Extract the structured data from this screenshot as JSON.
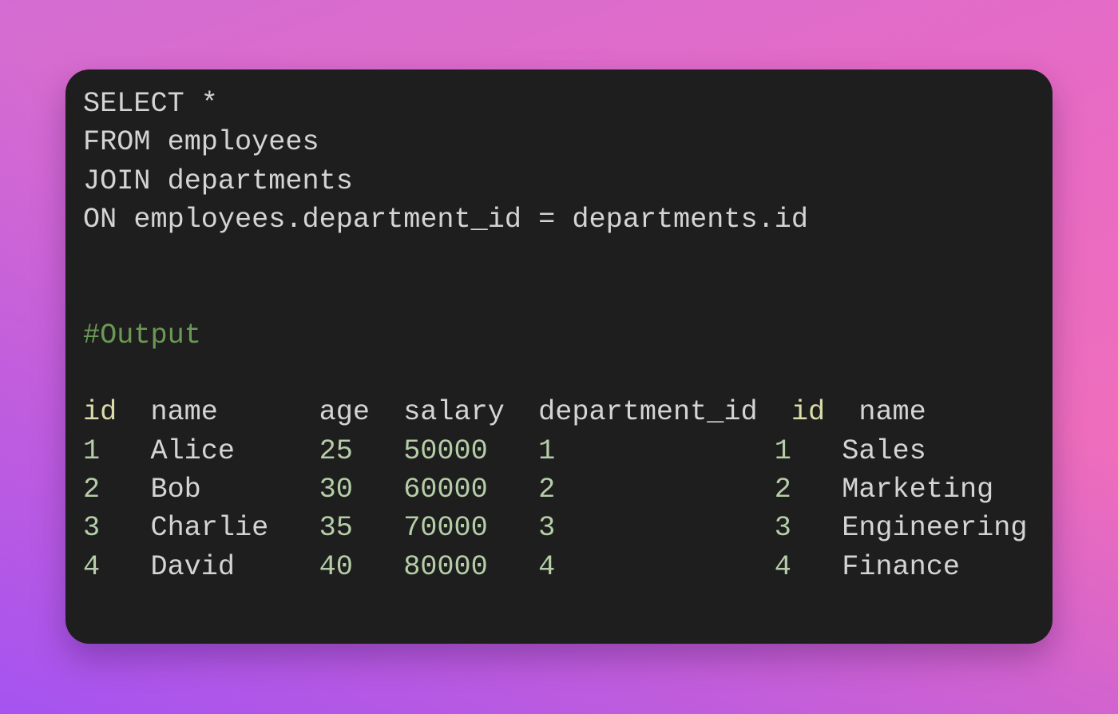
{
  "query": [
    "SELECT *",
    "FROM employees",
    "JOIN departments",
    "ON employees.department_id = departments.id"
  ],
  "output_comment": "#Output",
  "output": {
    "headers": [
      "id",
      "name",
      "age",
      "salary",
      "department_id",
      "id",
      "name"
    ],
    "rows": [
      [
        "1",
        "Alice",
        "25",
        "50000",
        "1",
        "1",
        "Sales"
      ],
      [
        "2",
        "Bob",
        "30",
        "60000",
        "2",
        "2",
        "Marketing"
      ],
      [
        "3",
        "Charlie",
        "35",
        "70000",
        "3",
        "3",
        "Engineering"
      ],
      [
        "4",
        "David",
        "40",
        "80000",
        "4",
        "4",
        "Finance"
      ]
    ]
  },
  "colors": {
    "card_background": "#1e1e1e",
    "text": "#d4d4d4",
    "comment": "#6a9955",
    "header_id": "#dcdcaa",
    "number": "#b5cea8"
  }
}
